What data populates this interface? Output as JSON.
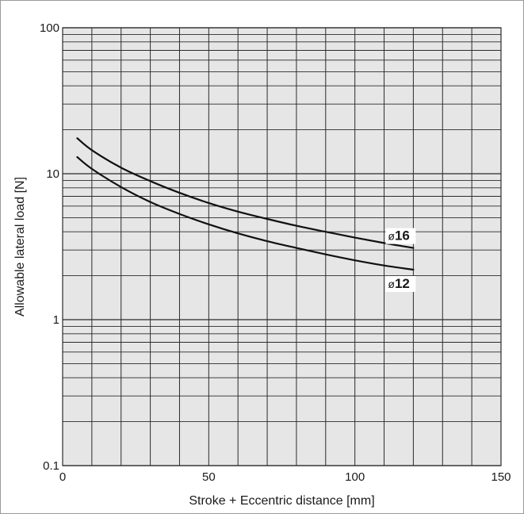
{
  "chart_data": {
    "type": "line",
    "title": "",
    "xlabel": "Stroke + Eccentric distance [mm]",
    "ylabel": "Allowable lateral load [N]",
    "xlim": [
      0,
      150
    ],
    "ylim": [
      0.1,
      100
    ],
    "yscale": "log",
    "grid": true,
    "x_ticks": [
      0,
      50,
      100,
      150
    ],
    "x_tick_labels": [
      "0",
      "50",
      "100",
      "150"
    ],
    "y_ticks": [
      0.1,
      1,
      10,
      100
    ],
    "y_tick_labels": [
      "0.1",
      "1",
      "10",
      "100"
    ],
    "colors": {
      "grid": "#2b2b2b",
      "plot_bg": "#e6e6e6",
      "line": "#111111",
      "frame": "#9a9a9a"
    },
    "series": [
      {
        "name": "ø16",
        "label_prefix": "ø",
        "label_number": "16",
        "x": [
          5,
          10,
          20,
          30,
          40,
          50,
          60,
          70,
          80,
          90,
          100,
          110,
          120
        ],
        "y": [
          17.5,
          14.5,
          11.0,
          8.9,
          7.4,
          6.3,
          5.5,
          4.9,
          4.4,
          4.0,
          3.65,
          3.35,
          3.1
        ]
      },
      {
        "name": "ø12",
        "label_prefix": "ø",
        "label_number": "12",
        "x": [
          5,
          10,
          20,
          30,
          40,
          50,
          60,
          70,
          80,
          90,
          100,
          110,
          120
        ],
        "y": [
          13.0,
          10.8,
          8.1,
          6.4,
          5.3,
          4.5,
          3.9,
          3.45,
          3.1,
          2.8,
          2.55,
          2.35,
          2.2
        ]
      }
    ]
  }
}
